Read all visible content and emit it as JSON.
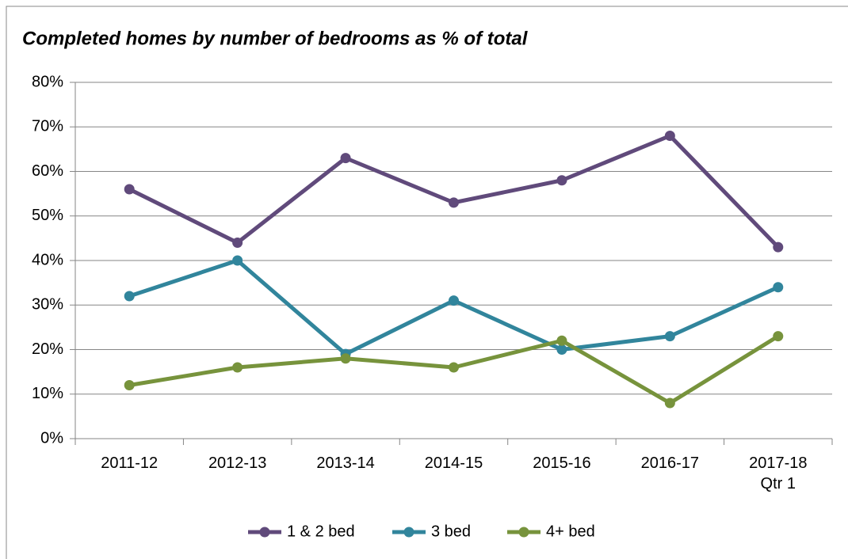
{
  "chart_data": {
    "type": "line",
    "title": "Completed homes by number of bedrooms as % of total",
    "categories": [
      "2011-12",
      "2012-13",
      "2013-14",
      "2014-15",
      "2015-16",
      "2016-17",
      "2017-18\nQtr 1"
    ],
    "series": [
      {
        "name": "1 & 2 bed",
        "color": "#604a7b",
        "values": [
          56,
          44,
          63,
          53,
          58,
          68,
          43
        ]
      },
      {
        "name": "3 bed",
        "color": "#31859c",
        "values": [
          32,
          40,
          19,
          31,
          20,
          23,
          34
        ]
      },
      {
        "name": "4+ bed",
        "color": "#77933c",
        "values": [
          12,
          16,
          18,
          16,
          22,
          8,
          23
        ]
      }
    ],
    "ylim": [
      0,
      80
    ],
    "yticks": [
      {
        "value": 0,
        "label": "0%"
      },
      {
        "value": 10,
        "label": "10%"
      },
      {
        "value": 20,
        "label": "20%"
      },
      {
        "value": 30,
        "label": "30%"
      },
      {
        "value": 40,
        "label": "40%"
      },
      {
        "value": 50,
        "label": "50%"
      },
      {
        "value": 60,
        "label": "60%"
      },
      {
        "value": 70,
        "label": "70%"
      },
      {
        "value": 80,
        "label": "80%"
      }
    ],
    "grid": true,
    "legend": "bottom"
  }
}
